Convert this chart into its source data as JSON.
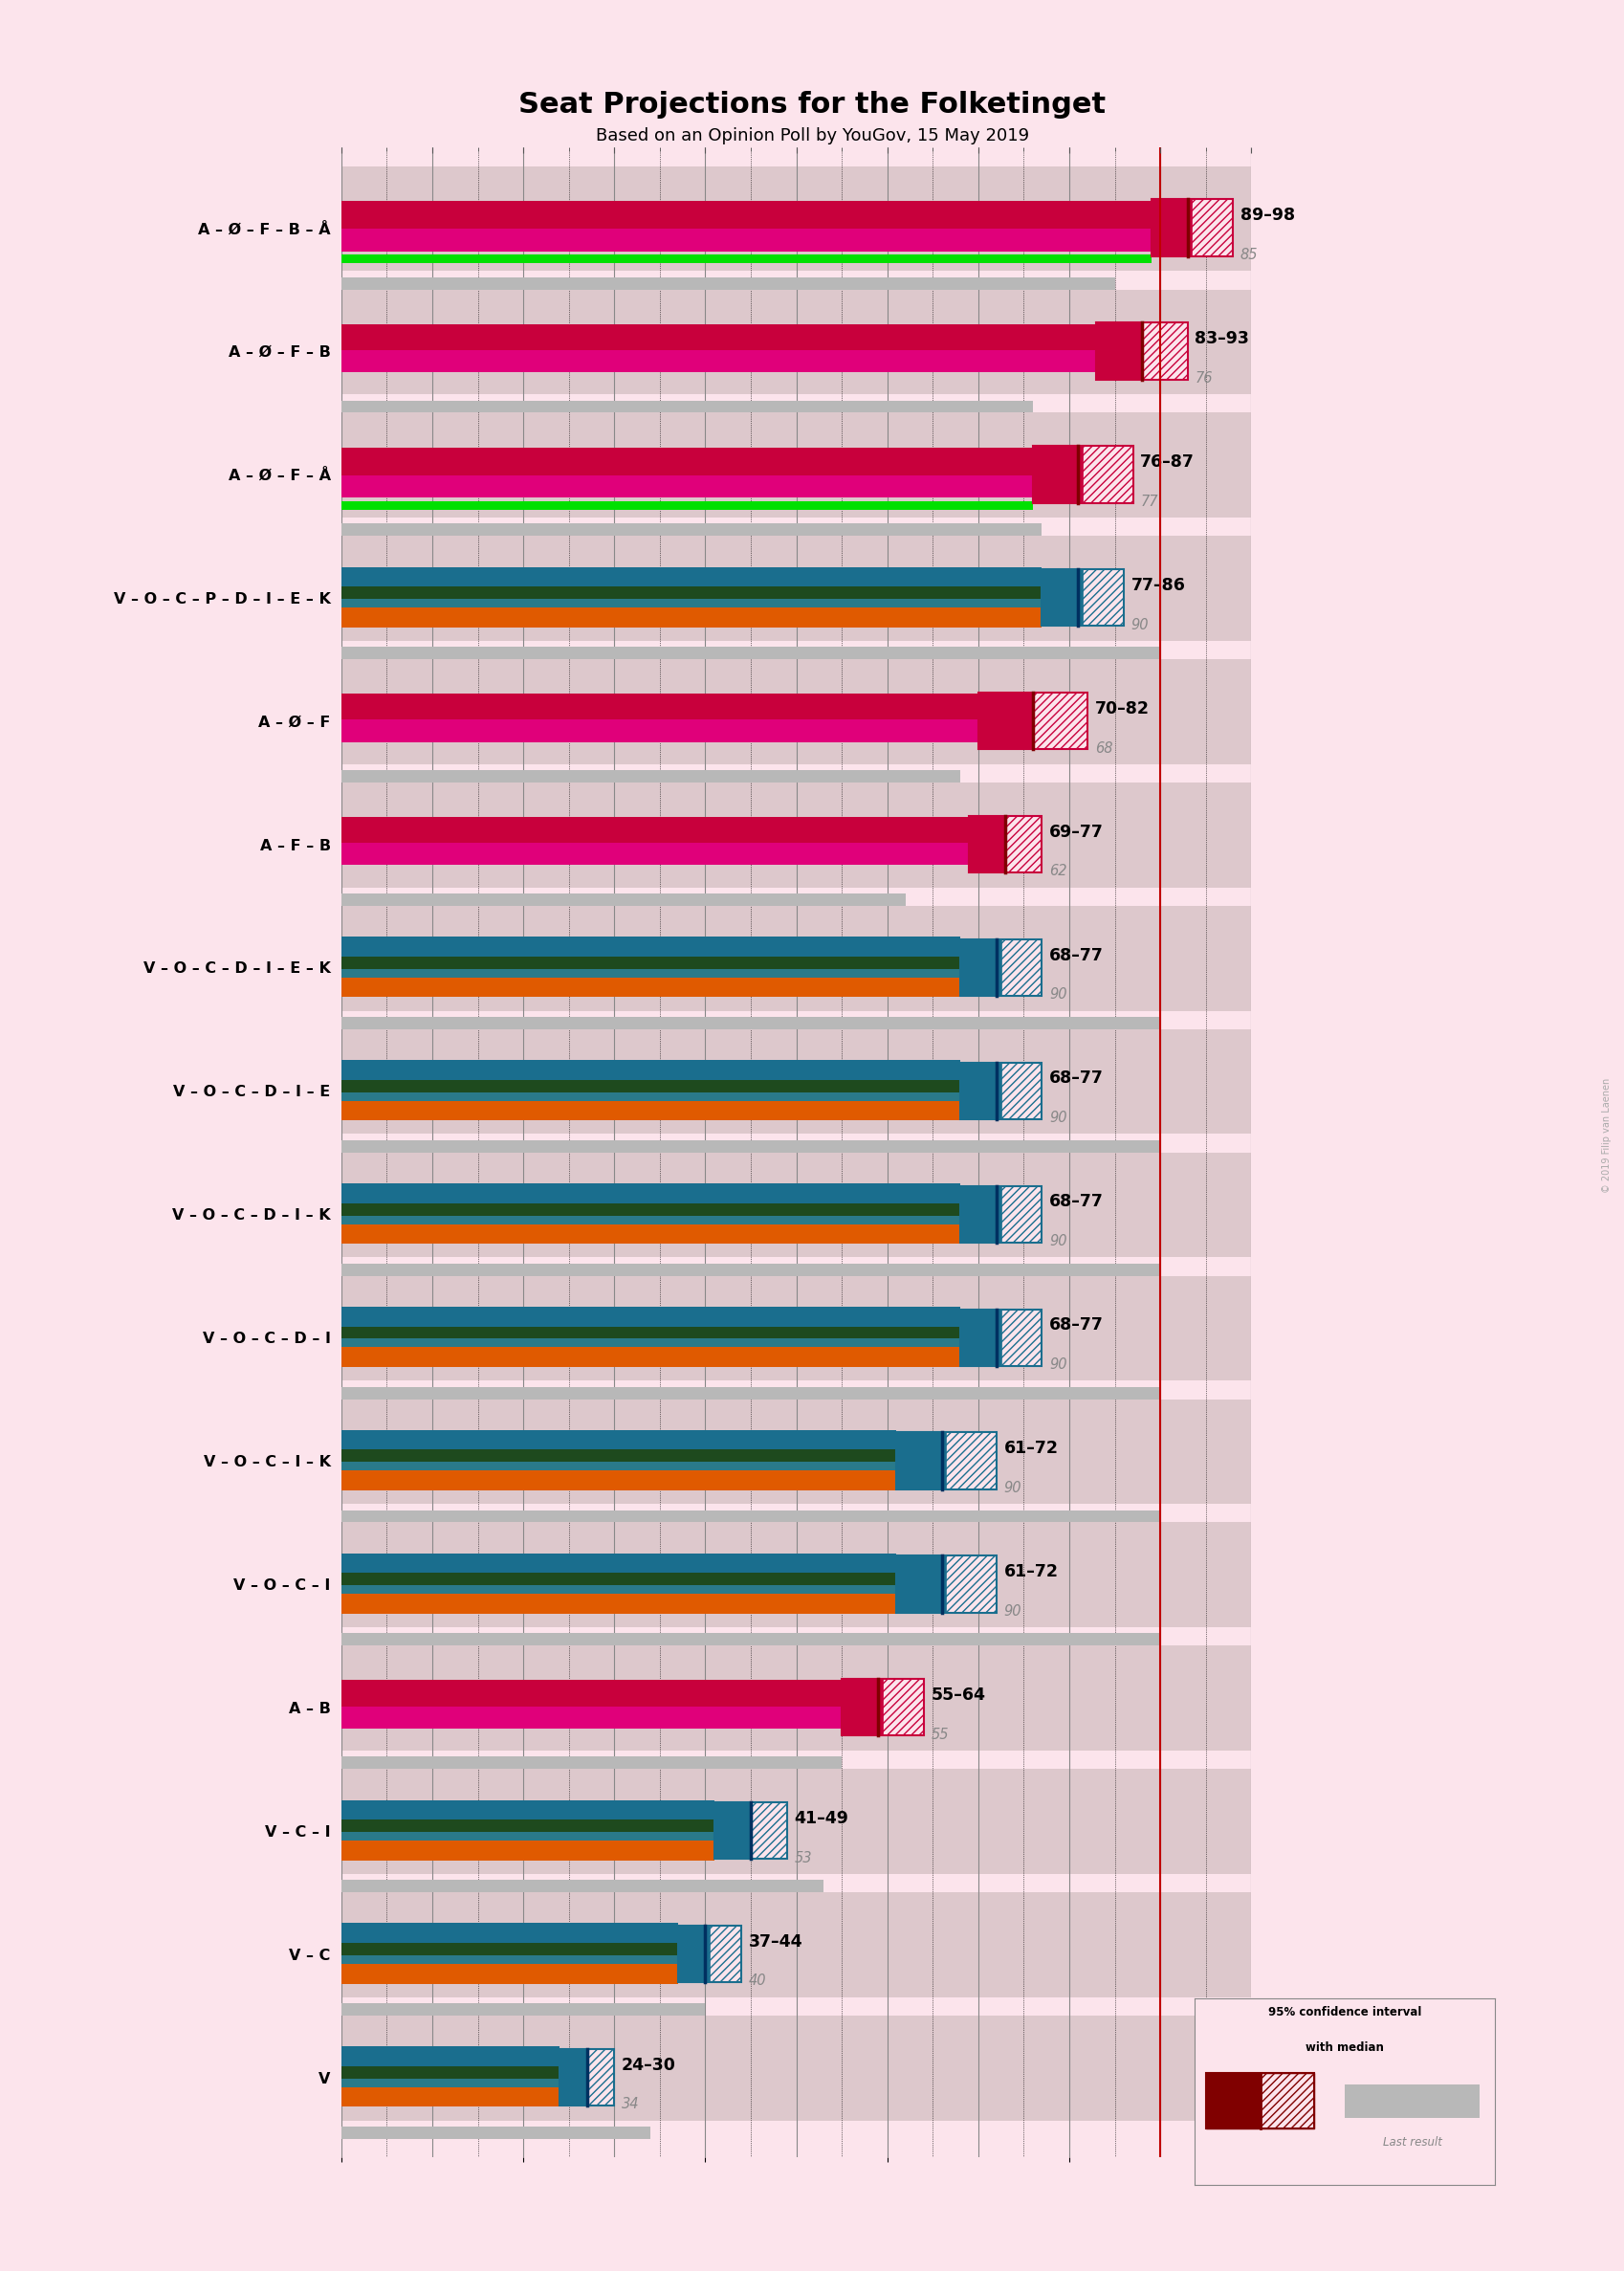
{
  "title": "Seat Projections for the Folketinget",
  "subtitle": "Based on an Opinion Poll by YouGov, 15 May 2019",
  "background_color": "#fce4ec",
  "copyright": "© 2019 Filip van Laenen",
  "coalitions": [
    {
      "label": "A – Ø – F – B – Å",
      "low": 89,
      "high": 98,
      "median": 93,
      "last": 85,
      "type": "red",
      "has_green": true,
      "underline": false
    },
    {
      "label": "A – Ø – F – B",
      "low": 83,
      "high": 93,
      "median": 88,
      "last": 76,
      "type": "red",
      "has_green": false,
      "underline": false
    },
    {
      "label": "A – Ø – F – Å",
      "low": 76,
      "high": 87,
      "median": 81,
      "last": 77,
      "type": "red",
      "has_green": true,
      "underline": false
    },
    {
      "label": "V – O – C – P – D – I – E – K",
      "low": 77,
      "high": 86,
      "median": 81,
      "last": 90,
      "type": "blue",
      "has_green": false,
      "underline": false
    },
    {
      "label": "A – Ø – F",
      "low": 70,
      "high": 82,
      "median": 76,
      "last": 68,
      "type": "red",
      "has_green": false,
      "underline": false
    },
    {
      "label": "A – F – B",
      "low": 69,
      "high": 77,
      "median": 73,
      "last": 62,
      "type": "red",
      "has_green": false,
      "underline": false
    },
    {
      "label": "V – O – C – D – I – E – K",
      "low": 68,
      "high": 77,
      "median": 72,
      "last": 90,
      "type": "blue",
      "has_green": false,
      "underline": false
    },
    {
      "label": "V – O – C – D – I – E",
      "low": 68,
      "high": 77,
      "median": 72,
      "last": 90,
      "type": "blue",
      "has_green": false,
      "underline": false
    },
    {
      "label": "V – O – C – D – I – K",
      "low": 68,
      "high": 77,
      "median": 72,
      "last": 90,
      "type": "blue",
      "has_green": false,
      "underline": false
    },
    {
      "label": "V – O – C – D – I",
      "low": 68,
      "high": 77,
      "median": 72,
      "last": 90,
      "type": "blue",
      "has_green": false,
      "underline": false
    },
    {
      "label": "V – O – C – I – K",
      "low": 61,
      "high": 72,
      "median": 66,
      "last": 90,
      "type": "blue",
      "has_green": false,
      "underline": false
    },
    {
      "label": "V – O – C – I",
      "low": 61,
      "high": 72,
      "median": 66,
      "last": 90,
      "type": "blue",
      "has_green": false,
      "underline": true
    },
    {
      "label": "A – B",
      "low": 55,
      "high": 64,
      "median": 59,
      "last": 55,
      "type": "red",
      "has_green": false,
      "underline": false
    },
    {
      "label": "V – C – I",
      "low": 41,
      "high": 49,
      "median": 45,
      "last": 53,
      "type": "blue",
      "has_green": false,
      "underline": true
    },
    {
      "label": "V – C",
      "low": 37,
      "high": 44,
      "median": 40,
      "last": 40,
      "type": "blue",
      "has_green": false,
      "underline": false
    },
    {
      "label": "V",
      "low": 24,
      "high": 30,
      "median": 27,
      "last": 34,
      "type": "blue",
      "has_green": false,
      "underline": false
    }
  ],
  "xmax": 100,
  "majority_line": 90,
  "red_top_color": "#c8003c",
  "red_bot_color": "#e0007a",
  "green_color": "#00e000",
  "blue_top_color": "#1a6e8e",
  "blue_mid_color": "#1e4a1e",
  "blue_mid2_color": "#2a6e7e",
  "blue_bot_color": "#e05a00",
  "last_color": "#b8b8b8",
  "ci_red_fill": "#c8003c",
  "ci_red_hatch": "#ffffff",
  "ci_blue_fill": "#1a6e8e",
  "ci_blue_hatch": "#ffffff",
  "median_red_color": "#800000",
  "median_blue_color": "#003060",
  "grid_band_color": "#ddc8cc",
  "grid_line_color": "#888888",
  "grid_dotted_color": "#000000"
}
